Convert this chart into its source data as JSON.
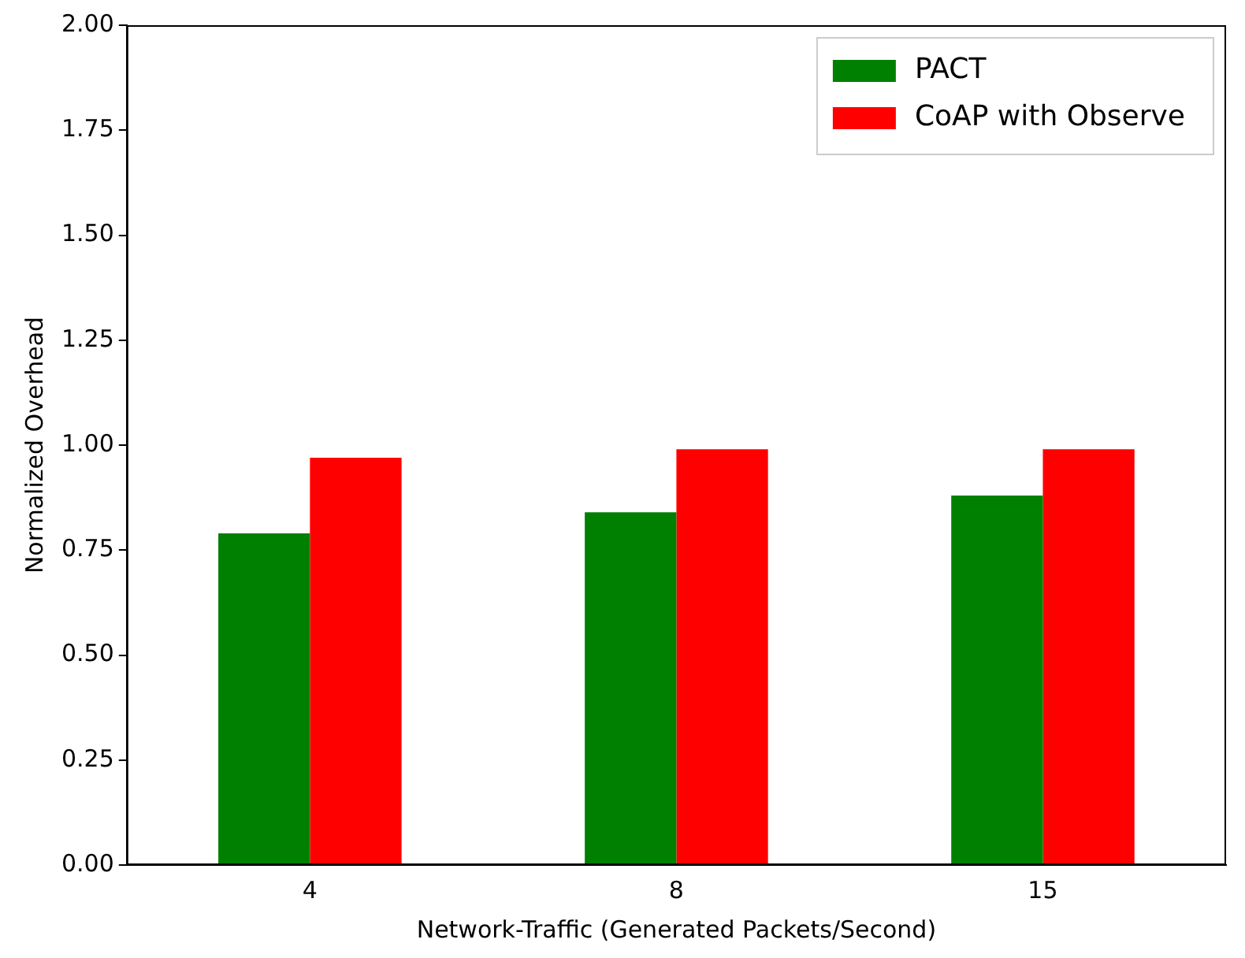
{
  "chart_data": {
    "type": "bar",
    "xlabel": "Network-Traffic (Generated Packets/Second)",
    "ylabel": "Normalized Overhead",
    "categories": [
      "4",
      "8",
      "15"
    ],
    "series": [
      {
        "name": "PACT",
        "color": "#008000",
        "values": [
          0.79,
          0.84,
          0.88
        ]
      },
      {
        "name": "CoAP with Observe",
        "color": "#ff0000",
        "values": [
          0.97,
          0.99,
          0.99
        ]
      }
    ],
    "ylim": [
      0,
      2
    ],
    "yticks": [
      {
        "value": 0,
        "label": "0.00"
      },
      {
        "value": 0.25,
        "label": "0.25"
      },
      {
        "value": 0.5,
        "label": "0.50"
      },
      {
        "value": 0.75,
        "label": "0.75"
      },
      {
        "value": 1,
        "label": "1.00"
      },
      {
        "value": 1.25,
        "label": "1.25"
      },
      {
        "value": 1.5,
        "label": "1.50"
      },
      {
        "value": 1.75,
        "label": "1.75"
      },
      {
        "value": 2,
        "label": "2.00"
      }
    ],
    "grid": false,
    "legend": "top right"
  }
}
